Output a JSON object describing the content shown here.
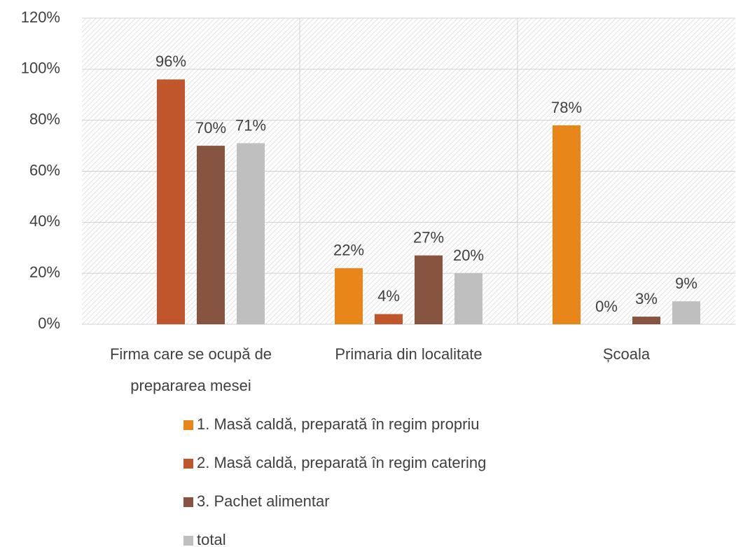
{
  "chart_data": {
    "type": "bar",
    "categories": [
      "Firma care se ocupă de prepararea mesei",
      "Primaria din localitate",
      "Școala"
    ],
    "series": [
      {
        "name": "1. Masă caldă, preparată în regim propriu",
        "color": "#E8861A",
        "values": [
          null,
          22,
          78
        ],
        "value_labels": [
          null,
          "22%",
          "78%"
        ]
      },
      {
        "name": "2. Masă caldă, preparată în regim catering",
        "color": "#C0562B",
        "values": [
          96,
          4,
          0
        ],
        "value_labels": [
          "96%",
          "4%",
          "0%"
        ]
      },
      {
        "name": "3. Pachet alimentar",
        "color": "#87543F",
        "values": [
          70,
          27,
          3
        ],
        "value_labels": [
          "70%",
          "27%",
          "3%"
        ]
      },
      {
        "name": "total",
        "color": "#BFBFBF",
        "values": [
          71,
          20,
          9
        ],
        "value_labels": [
          "71%",
          "20%",
          "9%"
        ]
      }
    ],
    "ylim": [
      0,
      120
    ],
    "yticks": [
      {
        "value": 0,
        "label": "0%"
      },
      {
        "value": 20,
        "label": "20%"
      },
      {
        "value": 40,
        "label": "40%"
      },
      {
        "value": 60,
        "label": "60%"
      },
      {
        "value": 80,
        "label": "80%"
      },
      {
        "value": 100,
        "label": "100%"
      },
      {
        "value": 120,
        "label": "120%"
      }
    ],
    "grid": true,
    "legend": "bottom"
  }
}
